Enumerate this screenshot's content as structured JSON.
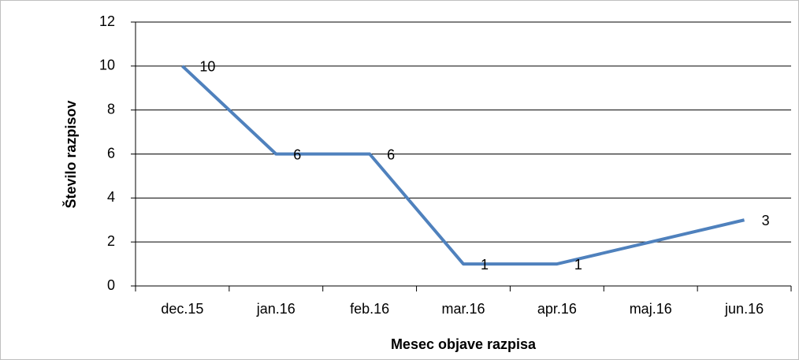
{
  "chart_data": {
    "type": "line",
    "x_label": "Mesec objave razpisa",
    "y_label": "Število razpisov",
    "categories": [
      "dec.15",
      "jan.16",
      "feb.16",
      "mar.16",
      "apr.16",
      "maj.16",
      "jun.16"
    ],
    "values": [
      10,
      6,
      6,
      1,
      1,
      2,
      3
    ],
    "value_labels": [
      "10",
      "6",
      "6",
      "1",
      "1",
      null,
      "3"
    ],
    "color": "#4f81bd",
    "ylim": [
      0,
      12
    ],
    "yticks": [
      0,
      2,
      4,
      6,
      8,
      10,
      12
    ],
    "grid": true
  }
}
